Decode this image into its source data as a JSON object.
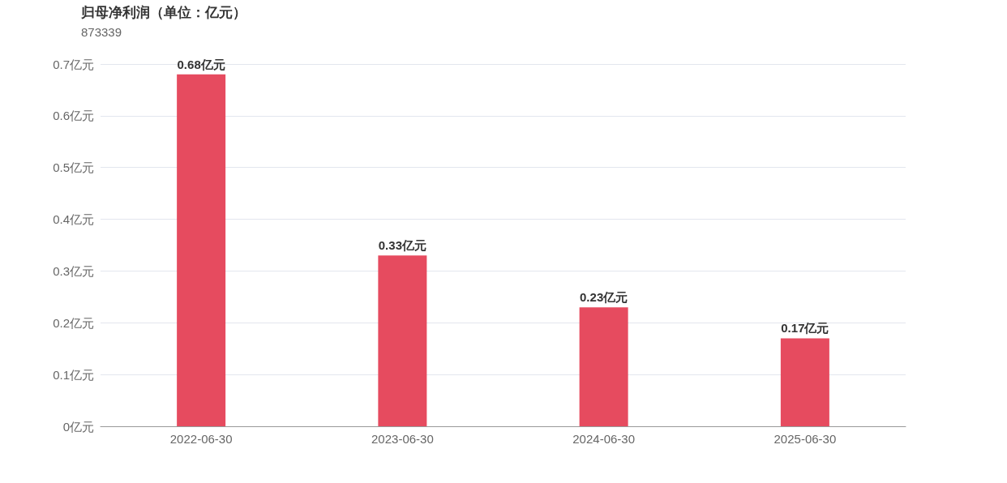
{
  "chart_data": {
    "type": "bar",
    "title": "归母净利润（单位：亿元）",
    "subtitle": "873339",
    "categories": [
      "2022-06-30",
      "2023-06-30",
      "2024-06-30",
      "2025-06-30"
    ],
    "values": [
      0.68,
      0.33,
      0.23,
      0.17
    ],
    "color": "#e64b5f",
    "value_labels": [
      "0.68亿元",
      "0.33亿元",
      "0.23亿元",
      "0.17亿元"
    ],
    "ylim": [
      0,
      0.7
    ],
    "yticks": [
      {
        "value": 0,
        "label": "0亿元"
      },
      {
        "value": 0.1,
        "label": "0.1亿元"
      },
      {
        "value": 0.2,
        "label": "0.2亿元"
      },
      {
        "value": 0.3,
        "label": "0.3亿元"
      },
      {
        "value": 0.4,
        "label": "0.4亿元"
      },
      {
        "value": 0.5,
        "label": "0.5亿元"
      },
      {
        "value": 0.6,
        "label": "0.6亿元"
      },
      {
        "value": 0.7,
        "label": "0.7亿元"
      }
    ],
    "grid": "y"
  }
}
